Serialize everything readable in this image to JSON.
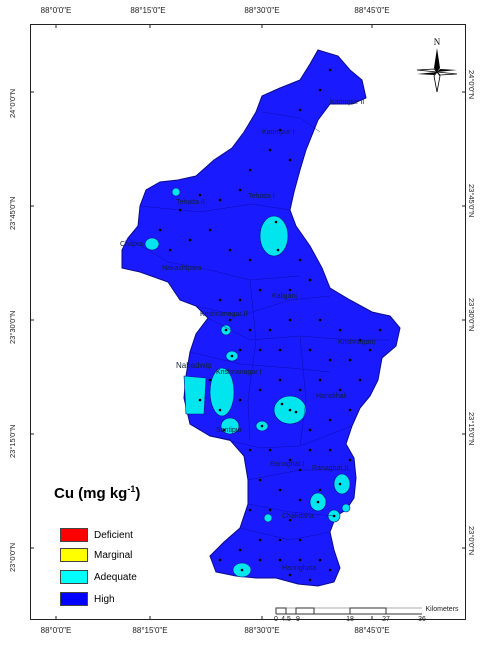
{
  "axes": {
    "longitude_ticks": [
      "88°0'0\"E",
      "88°15'0\"E",
      "88°30'0\"E",
      "88°45'0\"E"
    ],
    "latitude_ticks": [
      "24°0'0\"N",
      "23°45'0\"N",
      "23°30'0\"N",
      "23°15'0\"N",
      "23°0'0\"N"
    ]
  },
  "legend": {
    "title": "Cu (mg kg",
    "title_sup": "-1",
    "title_end": ")",
    "classes": [
      {
        "label": "Deficient",
        "color": "#ff0000"
      },
      {
        "label": "Marginal",
        "color": "#ffff00"
      },
      {
        "label": "Adequate",
        "color": "#00ffff"
      },
      {
        "label": "High",
        "color": "#0000ff"
      }
    ]
  },
  "scale_bar": {
    "labels": [
      "0",
      "4.5",
      "9",
      "18",
      "27",
      "36"
    ],
    "unit": "Kilometers"
  },
  "north_arrow": {
    "label": "N"
  },
  "place_labels": [
    "Karimpur II",
    "Karimpur I",
    "Tehatta I",
    "Tehatta II",
    "Chapra",
    "Nakashipara",
    "Kaliganj",
    "Krishnanagar II",
    "Krishnanagar I",
    "Nabadwip",
    "Hanskhali",
    "Krishnaganj",
    "Ranaghat I",
    "Ranaghat II",
    "Chakdaha",
    "Haringhata",
    "Santipur"
  ],
  "colors": {
    "high": "#1a1aff",
    "adequate": "#00e5ee",
    "border": "#0a0a8a"
  }
}
